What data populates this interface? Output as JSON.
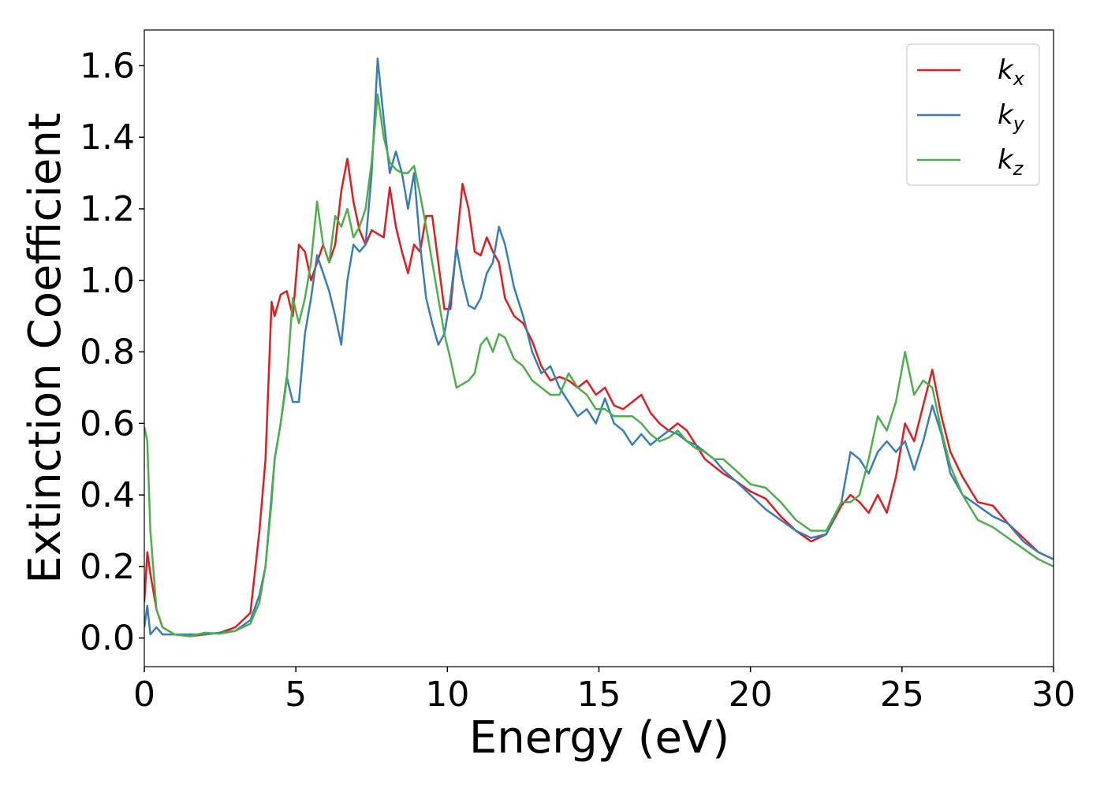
{
  "chart_data": {
    "type": "line",
    "xlabel": "Energy (eV)",
    "ylabel": "Extinction Coefficient",
    "x": [
      0,
      0.1,
      0.2,
      0.4,
      0.6,
      0.8,
      1,
      1.5,
      2,
      2.5,
      3,
      3.5,
      3.8,
      4,
      4.2,
      4.3,
      4.5,
      4.7,
      4.9,
      5.1,
      5.3,
      5.5,
      5.7,
      5.9,
      6.1,
      6.3,
      6.5,
      6.7,
      6.9,
      7.1,
      7.3,
      7.5,
      7.7,
      7.9,
      8.1,
      8.3,
      8.5,
      8.7,
      8.9,
      9.1,
      9.3,
      9.5,
      9.7,
      9.9,
      10.1,
      10.3,
      10.5,
      10.7,
      10.9,
      11.1,
      11.3,
      11.5,
      11.7,
      11.9,
      12.2,
      12.5,
      12.8,
      13.1,
      13.4,
      13.7,
      14,
      14.3,
      14.6,
      14.9,
      15.2,
      15.5,
      15.8,
      16.1,
      16.4,
      16.7,
      17,
      17.3,
      17.6,
      17.9,
      18.2,
      18.5,
      18.8,
      19.1,
      19.5,
      20,
      20.5,
      21,
      21.5,
      22,
      22.5,
      23,
      23.3,
      23.6,
      23.9,
      24.2,
      24.5,
      24.8,
      25.1,
      25.4,
      25.7,
      26,
      26.3,
      26.6,
      27,
      27.5,
      28,
      28.5,
      29,
      29.5,
      30
    ],
    "series": [
      {
        "name": "kx",
        "color": "#e41a1c",
        "values": [
          0.1,
          0.24,
          0.18,
          0.08,
          0.03,
          0.02,
          0.01,
          0.005,
          0.01,
          0.015,
          0.03,
          0.07,
          0.3,
          0.5,
          0.94,
          0.9,
          0.96,
          0.97,
          0.9,
          1.1,
          1.08,
          1.0,
          1.05,
          1.1,
          1.05,
          1.1,
          1.25,
          1.34,
          1.22,
          1.14,
          1.1,
          1.14,
          1.13,
          1.12,
          1.26,
          1.15,
          1.08,
          1.02,
          1.1,
          1.08,
          1.18,
          1.18,
          1.05,
          0.92,
          0.92,
          1.1,
          1.27,
          1.2,
          1.08,
          1.07,
          1.12,
          1.08,
          1.05,
          0.95,
          0.9,
          0.88,
          0.83,
          0.76,
          0.72,
          0.73,
          0.72,
          0.7,
          0.72,
          0.68,
          0.7,
          0.65,
          0.64,
          0.66,
          0.68,
          0.63,
          0.6,
          0.58,
          0.6,
          0.58,
          0.54,
          0.5,
          0.48,
          0.46,
          0.44,
          0.41,
          0.39,
          0.34,
          0.3,
          0.27,
          0.29,
          0.37,
          0.4,
          0.38,
          0.35,
          0.4,
          0.35,
          0.45,
          0.6,
          0.55,
          0.65,
          0.75,
          0.62,
          0.52,
          0.45,
          0.38,
          0.37,
          0.32,
          0.28,
          0.24,
          0.22
        ]
      },
      {
        "name": "ky",
        "color": "#377eb8",
        "values": [
          0.03,
          0.09,
          0.01,
          0.03,
          0.01,
          0.01,
          0.01,
          0.01,
          0.01,
          0.015,
          0.02,
          0.05,
          0.12,
          0.2,
          0.4,
          0.5,
          0.6,
          0.73,
          0.66,
          0.66,
          0.85,
          0.95,
          1.07,
          1.02,
          0.97,
          0.9,
          0.82,
          1.0,
          1.1,
          1.08,
          1.1,
          1.3,
          1.62,
          1.45,
          1.3,
          1.36,
          1.3,
          1.2,
          1.3,
          1.1,
          0.95,
          0.88,
          0.82,
          0.85,
          0.95,
          1.09,
          1.0,
          0.93,
          0.92,
          0.95,
          1.02,
          1.05,
          1.15,
          1.1,
          0.98,
          0.9,
          0.8,
          0.74,
          0.76,
          0.7,
          0.66,
          0.62,
          0.64,
          0.6,
          0.67,
          0.6,
          0.58,
          0.54,
          0.57,
          0.54,
          0.56,
          0.58,
          0.57,
          0.55,
          0.54,
          0.52,
          0.5,
          0.47,
          0.44,
          0.4,
          0.36,
          0.33,
          0.3,
          0.28,
          0.29,
          0.38,
          0.52,
          0.5,
          0.46,
          0.52,
          0.55,
          0.52,
          0.55,
          0.47,
          0.55,
          0.65,
          0.57,
          0.46,
          0.4,
          0.37,
          0.34,
          0.32,
          0.27,
          0.24,
          0.22
        ]
      },
      {
        "name": "kz",
        "color": "#4daf4a",
        "values": [
          0.59,
          0.55,
          0.3,
          0.08,
          0.03,
          0.02,
          0.01,
          0.005,
          0.015,
          0.012,
          0.02,
          0.04,
          0.1,
          0.2,
          0.38,
          0.5,
          0.6,
          0.72,
          0.95,
          0.88,
          0.95,
          1.05,
          1.22,
          1.1,
          1.05,
          1.18,
          1.15,
          1.2,
          1.12,
          1.15,
          1.2,
          1.33,
          1.52,
          1.4,
          1.33,
          1.31,
          1.3,
          1.3,
          1.32,
          1.24,
          1.15,
          1.05,
          0.95,
          0.85,
          0.78,
          0.7,
          0.71,
          0.72,
          0.74,
          0.82,
          0.84,
          0.8,
          0.85,
          0.84,
          0.78,
          0.76,
          0.72,
          0.7,
          0.68,
          0.68,
          0.74,
          0.7,
          0.68,
          0.64,
          0.64,
          0.62,
          0.62,
          0.62,
          0.6,
          0.57,
          0.55,
          0.56,
          0.58,
          0.55,
          0.53,
          0.52,
          0.5,
          0.5,
          0.47,
          0.43,
          0.42,
          0.38,
          0.33,
          0.3,
          0.3,
          0.38,
          0.38,
          0.4,
          0.5,
          0.62,
          0.58,
          0.66,
          0.8,
          0.68,
          0.72,
          0.7,
          0.58,
          0.48,
          0.4,
          0.33,
          0.31,
          0.28,
          0.25,
          0.22,
          0.2
        ]
      }
    ],
    "xlim": [
      0,
      30
    ],
    "xticks": [
      0,
      5,
      10,
      15,
      20,
      25,
      30
    ],
    "ylim": [
      -0.08,
      1.7
    ],
    "yticks": [
      {
        "value": 0,
        "label": "0.0"
      },
      0.2,
      0.4,
      0.6,
      0.8,
      {
        "value": 1,
        "label": "1.0"
      },
      1.2,
      1.4,
      1.6
    ],
    "grid": false,
    "legend": "upper right"
  }
}
